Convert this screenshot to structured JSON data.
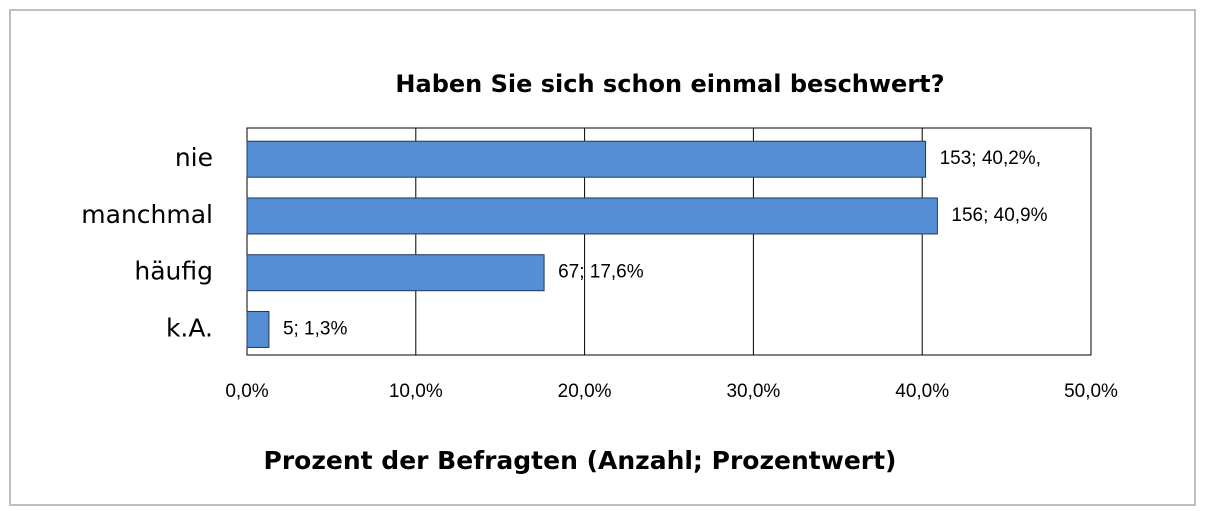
{
  "chart_data": {
    "type": "bar",
    "orientation": "horizontal",
    "title": "Haben Sie sich schon einmal beschwert?",
    "xlabel": "Prozent der Befragten (Anzahl; Prozentwert)",
    "categories": [
      "nie",
      "manchmal",
      "häufig",
      "k.A."
    ],
    "values": [
      40.2,
      40.9,
      17.6,
      1.3
    ],
    "value_labels": [
      "153; 40,2%,",
      "156;  40,9%",
      "67; 17,6%",
      "5; 1,3%"
    ],
    "color": "#558ed5",
    "xlim": [
      0,
      50
    ],
    "xticks": [
      {
        "value": 0,
        "label": "0,0%"
      },
      {
        "value": 10,
        "label": "10,0%"
      },
      {
        "value": 20,
        "label": "20,0%"
      },
      {
        "value": 30,
        "label": "30,0%"
      },
      {
        "value": 40,
        "label": "40,0%"
      },
      {
        "value": 50,
        "label": "50,0%"
      }
    ],
    "grid": true
  }
}
